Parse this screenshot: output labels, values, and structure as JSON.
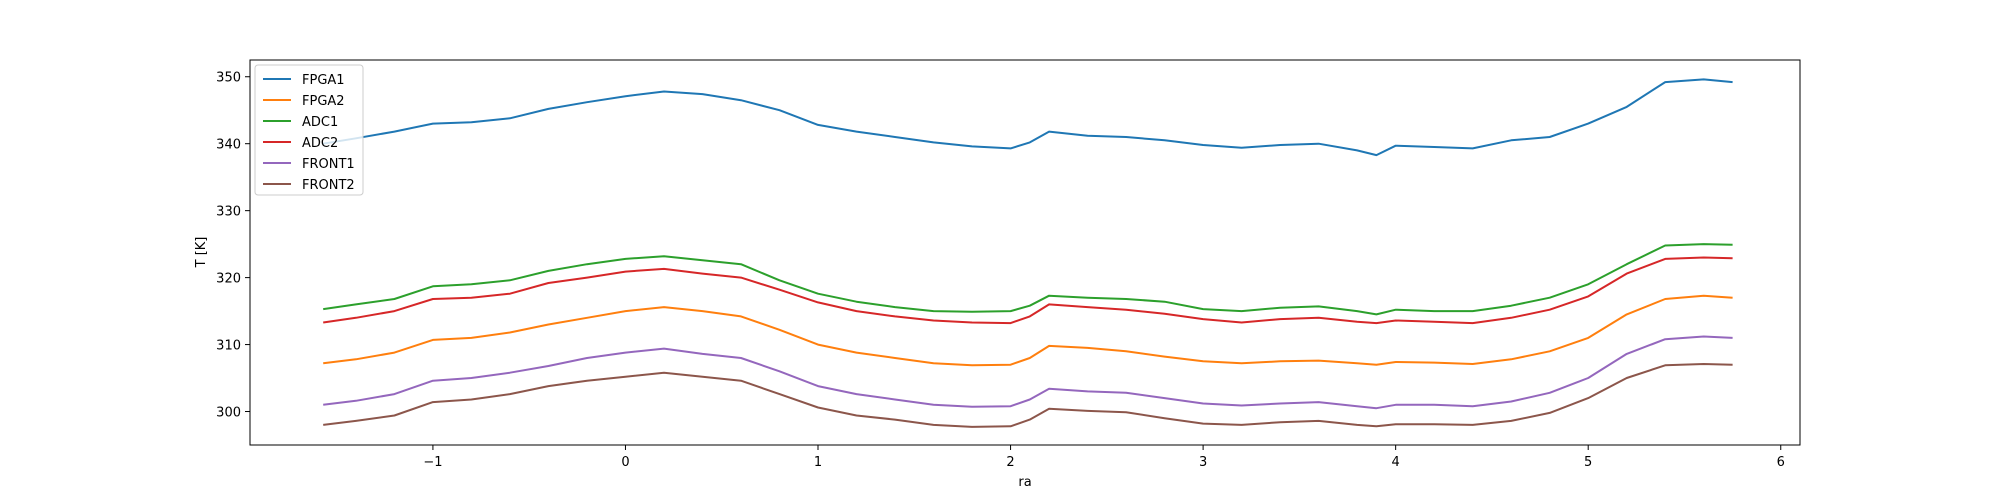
{
  "chart_data": {
    "type": "line",
    "title": "",
    "xlabel": "ra",
    "ylabel": "T [K]",
    "xlim": [
      -1.95,
      6.1
    ],
    "ylim": [
      295,
      352.5
    ],
    "xticks": [
      -1,
      0,
      1,
      2,
      3,
      4,
      5,
      6
    ],
    "xtick_labels": [
      "−1",
      "0",
      "1",
      "2",
      "3",
      "4",
      "5",
      "6"
    ],
    "yticks": [
      300,
      310,
      320,
      330,
      340,
      350
    ],
    "ytick_labels": [
      "300",
      "310",
      "320",
      "330",
      "340",
      "350"
    ],
    "grid": false,
    "legend_position": "top-left",
    "x": [
      -1.57,
      -1.4,
      -1.2,
      -1.0,
      -0.8,
      -0.6,
      -0.4,
      -0.2,
      0.0,
      0.2,
      0.4,
      0.6,
      0.8,
      1.0,
      1.2,
      1.4,
      1.6,
      1.8,
      2.0,
      2.1,
      2.2,
      2.4,
      2.6,
      2.8,
      3.0,
      3.2,
      3.4,
      3.6,
      3.8,
      3.9,
      4.0,
      4.2,
      4.4,
      4.6,
      4.8,
      5.0,
      5.2,
      5.4,
      5.6,
      5.75
    ],
    "series": [
      {
        "name": "FPGA1",
        "color": "#1f77b4",
        "values": [
          340.0,
          340.8,
          341.8,
          343.0,
          343.2,
          343.8,
          345.2,
          346.2,
          347.1,
          347.8,
          347.4,
          346.5,
          345.0,
          342.8,
          341.8,
          341.0,
          340.2,
          339.6,
          339.3,
          340.2,
          341.8,
          341.2,
          341.0,
          340.5,
          339.8,
          339.4,
          339.8,
          340.0,
          339.0,
          338.3,
          339.7,
          339.5,
          339.3,
          340.5,
          341.0,
          343.0,
          345.5,
          349.2,
          349.6,
          349.2
        ]
      },
      {
        "name": "FPGA2",
        "color": "#ff7f0e",
        "values": [
          307.2,
          307.8,
          308.8,
          310.7,
          311.0,
          311.8,
          313.0,
          314.0,
          315.0,
          315.6,
          315.0,
          314.2,
          312.2,
          310.0,
          308.8,
          308.0,
          307.2,
          306.9,
          307.0,
          308.0,
          309.8,
          309.5,
          309.0,
          308.2,
          307.5,
          307.2,
          307.5,
          307.6,
          307.2,
          307.0,
          307.4,
          307.3,
          307.1,
          307.8,
          309.0,
          311.0,
          314.5,
          316.8,
          317.3,
          317.0
        ]
      },
      {
        "name": "ADC1",
        "color": "#2ca02c",
        "values": [
          315.3,
          316.0,
          316.8,
          318.7,
          319.0,
          319.6,
          321.0,
          322.0,
          322.8,
          323.2,
          322.6,
          322.0,
          319.6,
          317.6,
          316.4,
          315.6,
          315.0,
          314.9,
          315.0,
          315.8,
          317.3,
          317.0,
          316.8,
          316.4,
          315.3,
          315.0,
          315.5,
          315.7,
          315.0,
          314.5,
          315.2,
          315.0,
          315.0,
          315.8,
          317.0,
          319.0,
          322.0,
          324.8,
          325.0,
          324.9
        ]
      },
      {
        "name": "ADC2",
        "color": "#d62728",
        "values": [
          313.3,
          314.0,
          315.0,
          316.8,
          317.0,
          317.6,
          319.2,
          320.0,
          320.9,
          321.3,
          320.6,
          320.0,
          318.2,
          316.3,
          315.0,
          314.2,
          313.6,
          313.3,
          313.2,
          314.2,
          316.0,
          315.6,
          315.2,
          314.6,
          313.8,
          313.3,
          313.8,
          314.0,
          313.4,
          313.2,
          313.6,
          313.4,
          313.2,
          314.0,
          315.2,
          317.2,
          320.6,
          322.8,
          323.0,
          322.9
        ]
      },
      {
        "name": "FRONT1",
        "color": "#9467bd",
        "values": [
          301.0,
          301.6,
          302.6,
          304.6,
          305.0,
          305.8,
          306.8,
          308.0,
          308.8,
          309.4,
          308.6,
          308.0,
          306.0,
          303.8,
          302.6,
          301.8,
          301.0,
          300.7,
          300.8,
          301.8,
          303.4,
          303.0,
          302.8,
          302.0,
          301.2,
          300.9,
          301.2,
          301.4,
          300.8,
          300.5,
          301.0,
          301.0,
          300.8,
          301.5,
          302.8,
          305.0,
          308.6,
          310.8,
          311.2,
          311.0
        ]
      },
      {
        "name": "FRONT2",
        "color": "#8c564b",
        "values": [
          298.0,
          298.6,
          299.4,
          301.4,
          301.8,
          302.6,
          303.8,
          304.6,
          305.2,
          305.8,
          305.2,
          304.6,
          302.6,
          300.6,
          299.4,
          298.8,
          298.0,
          297.7,
          297.8,
          298.8,
          300.4,
          300.1,
          299.9,
          299.0,
          298.2,
          298.0,
          298.4,
          298.6,
          298.0,
          297.8,
          298.1,
          298.1,
          298.0,
          298.6,
          299.8,
          302.0,
          305.0,
          306.9,
          307.1,
          307.0
        ]
      }
    ]
  }
}
